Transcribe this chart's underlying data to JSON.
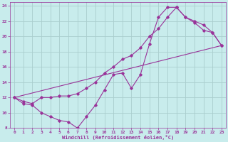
{
  "xlabel": "Windchill (Refroidissement éolien,°C)",
  "background_color": "#c8ecec",
  "grid_color": "#aacece",
  "line_color": "#993399",
  "xlim": [
    -0.5,
    23.5
  ],
  "ylim": [
    8,
    24.5
  ],
  "xticks": [
    0,
    1,
    2,
    3,
    4,
    5,
    6,
    7,
    8,
    9,
    10,
    11,
    12,
    13,
    14,
    15,
    16,
    17,
    18,
    19,
    20,
    21,
    22,
    23
  ],
  "yticks": [
    8,
    10,
    12,
    14,
    16,
    18,
    20,
    22,
    24
  ],
  "series": [
    {
      "x": [
        0,
        1,
        2,
        3,
        4,
        5,
        6,
        7,
        8,
        9,
        10,
        11,
        12,
        13,
        14,
        15,
        16,
        17,
        18,
        19,
        20,
        21,
        22,
        23
      ],
      "y": [
        12,
        11.2,
        11.0,
        10.0,
        9.5,
        9.0,
        8.8,
        8.0,
        9.5,
        11.0,
        13.0,
        15.0,
        15.2,
        13.2,
        15.0,
        19.0,
        22.5,
        23.8,
        23.8,
        22.5,
        21.8,
        20.8,
        20.5,
        18.8
      ]
    },
    {
      "x": [
        0,
        1,
        2,
        3,
        4,
        5,
        6,
        7,
        8,
        9,
        10,
        11,
        12,
        13,
        14,
        15,
        16,
        17,
        18,
        19,
        20,
        21,
        22,
        23
      ],
      "y": [
        12,
        11.5,
        11.2,
        12.0,
        12.0,
        12.2,
        12.2,
        12.5,
        13.2,
        14.0,
        15.2,
        16.0,
        17.0,
        17.5,
        18.5,
        20.0,
        21.0,
        22.5,
        23.8,
        22.5,
        22.0,
        21.5,
        20.5,
        18.8
      ]
    },
    {
      "x": [
        0,
        23
      ],
      "y": [
        12,
        18.8
      ]
    }
  ]
}
